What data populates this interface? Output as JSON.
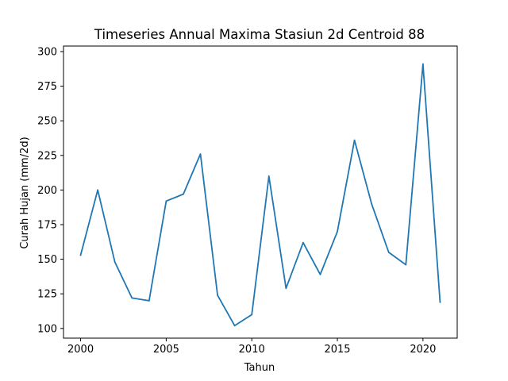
{
  "chart_data": {
    "type": "line",
    "title": "Timeseries Annual Maxima Stasiun 2d Centroid 88",
    "xlabel": "Tahun",
    "ylabel": "Curah Hujan (mm/2d)",
    "xlim": [
      1999,
      2022
    ],
    "ylim": [
      93,
      304
    ],
    "xticks": [
      2000,
      2005,
      2010,
      2015,
      2020
    ],
    "yticks": [
      100,
      125,
      150,
      175,
      200,
      225,
      250,
      275,
      300
    ],
    "grid": false,
    "series": [
      {
        "color": "#1f77b4",
        "x": [
          2000,
          2001,
          2002,
          2003,
          2004,
          2005,
          2006,
          2007,
          2008,
          2009,
          2010,
          2011,
          2012,
          2013,
          2014,
          2015,
          2016,
          2017,
          2018,
          2019,
          2020,
          2021
        ],
        "y": [
          153,
          200,
          148,
          122,
          120,
          192,
          197,
          226,
          124,
          102,
          110,
          210,
          129,
          162,
          139,
          170,
          236,
          190,
          155,
          146,
          291,
          119
        ]
      }
    ]
  }
}
